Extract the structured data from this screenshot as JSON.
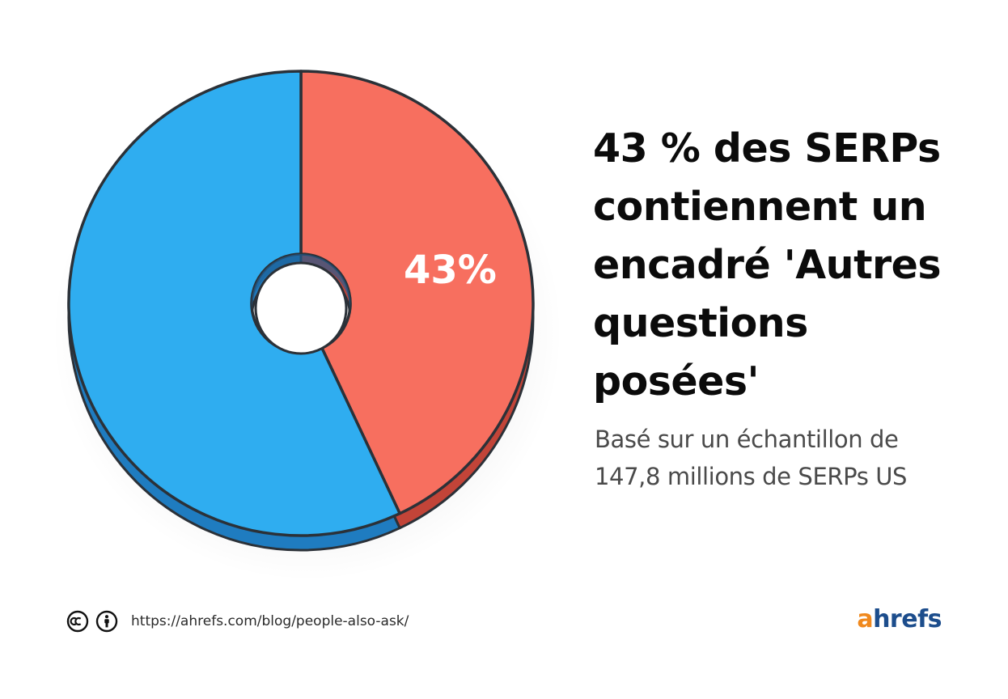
{
  "headline": "43 % des SERPs contiennent un encadré 'Autres questions posées'",
  "subtitle": "Basé sur un échantillon de 147,8 millions de SERPs US",
  "footer": {
    "cc_icon": "creative-commons-icon",
    "by_icon": "attribution-icon",
    "url": "https://ahrefs.com/blog/people-also-ask/"
  },
  "brand": {
    "prefix": "a",
    "rest": "hrefs",
    "prefix_color": "#f0891e",
    "rest_color": "#1c4d8c"
  },
  "chart_data": {
    "type": "pie",
    "style": "donut-3d",
    "slices": [
      {
        "value": 43,
        "label": "43%",
        "color": "#f76f5f",
        "side_color": "#c24438"
      },
      {
        "value": 57,
        "label": "",
        "color": "#2fadf0",
        "side_color": "#1f7cc0"
      }
    ],
    "legend": false,
    "grid": false
  }
}
